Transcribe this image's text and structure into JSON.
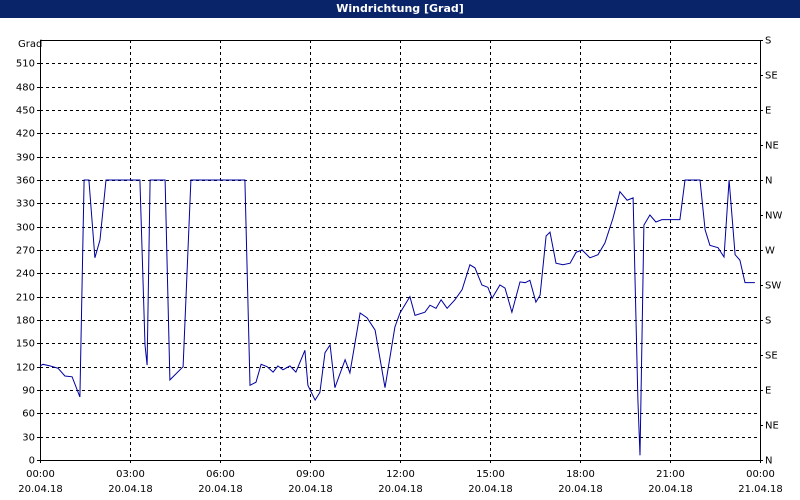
{
  "chart_data": {
    "type": "line",
    "title": "Windrichtung [Grad]",
    "ylabel": "Grad",
    "color": "#0000a0",
    "grid": true,
    "xlim": [
      0,
      24
    ],
    "xticks": [
      {
        "value": 0,
        "label": "00:00",
        "date": "20.04.18"
      },
      {
        "value": 3,
        "label": "03:00",
        "date": "20.04.18"
      },
      {
        "value": 6,
        "label": "06:00",
        "date": "20.04.18"
      },
      {
        "value": 9,
        "label": "09:00",
        "date": "20.04.18"
      },
      {
        "value": 12,
        "label": "12:00",
        "date": "20.04.18"
      },
      {
        "value": 15,
        "label": "15:00",
        "date": "20.04.18"
      },
      {
        "value": 18,
        "label": "18:00",
        "date": "20.04.18"
      },
      {
        "value": 21,
        "label": "21:00",
        "date": "20.04.18"
      },
      {
        "value": 24,
        "label": "00:00",
        "date": "21.04.18"
      }
    ],
    "ylim": [
      0,
      540
    ],
    "yticks": [
      0,
      30,
      60,
      90,
      120,
      150,
      180,
      210,
      240,
      270,
      300,
      330,
      360,
      390,
      420,
      450,
      480,
      510
    ],
    "y2lim": [
      0,
      540
    ],
    "y2ticks": [
      {
        "value": 0,
        "label": "N"
      },
      {
        "value": 45,
        "label": "NE"
      },
      {
        "value": 90,
        "label": "E"
      },
      {
        "value": 135,
        "label": "SE"
      },
      {
        "value": 180,
        "label": "S"
      },
      {
        "value": 225,
        "label": "SW"
      },
      {
        "value": 270,
        "label": "W"
      },
      {
        "value": 315,
        "label": "NW"
      },
      {
        "value": 360,
        "label": "N"
      },
      {
        "value": 405,
        "label": "NE"
      },
      {
        "value": 450,
        "label": "E"
      },
      {
        "value": 495,
        "label": "SE"
      },
      {
        "value": 540,
        "label": "S"
      }
    ],
    "x": [
      0,
      0.1,
      0.33,
      0.6,
      0.83,
      1.07,
      1.33,
      1.47,
      1.63,
      1.83,
      2,
      2.2,
      3.33,
      3.5,
      3.57,
      3.67,
      4.17,
      4.33,
      4.77,
      5.03,
      6.83,
      7,
      7.2,
      7.37,
      7.57,
      7.77,
      7.93,
      8.1,
      8.33,
      8.53,
      8.83,
      8.93,
      9.17,
      9.33,
      9.5,
      9.67,
      9.83,
      10.17,
      10.33,
      10.67,
      10.9,
      11.17,
      11.5,
      11.83,
      12,
      12.33,
      12.5,
      12.83,
      13,
      13.2,
      13.37,
      13.57,
      13.83,
      14.07,
      14.33,
      14.5,
      14.73,
      14.93,
      15.07,
      15.33,
      15.5,
      15.73,
      16,
      16.17,
      16.33,
      16.53,
      16.67,
      16.87,
      17,
      17.2,
      17.43,
      17.67,
      17.87,
      18.07,
      18.33,
      18.6,
      18.83,
      19.1,
      19.33,
      19.57,
      19.77,
      19.93,
      20,
      20.13,
      20.33,
      20.53,
      20.73,
      21,
      21.33,
      21.5,
      22,
      22.17,
      22.33,
      22.6,
      22.8,
      22.97,
      23.17,
      23.33,
      23.5,
      23.83
    ],
    "values": [
      121,
      123,
      121,
      118,
      108,
      107,
      81,
      360,
      360,
      260,
      283,
      360,
      360,
      148,
      122,
      360,
      360,
      103,
      120,
      360,
      360,
      96,
      100,
      123,
      120,
      113,
      121,
      116,
      121,
      113,
      141,
      96,
      77,
      87,
      138,
      148,
      93,
      129,
      112,
      189,
      183,
      167,
      93,
      171,
      189,
      210,
      186,
      190,
      199,
      195,
      206,
      195,
      206,
      219,
      251,
      247,
      225,
      222,
      208,
      225,
      221,
      190,
      229,
      228,
      231,
      203,
      212,
      288,
      293,
      253,
      251,
      253,
      267,
      270,
      260,
      264,
      279,
      311,
      345,
      334,
      337,
      77,
      6,
      302,
      315,
      306,
      309,
      309,
      309,
      360,
      360,
      296,
      276,
      273,
      261,
      360,
      264,
      257,
      228,
      228
    ]
  }
}
